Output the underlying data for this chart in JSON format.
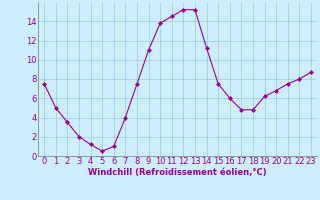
{
  "x": [
    0,
    1,
    2,
    3,
    4,
    5,
    6,
    7,
    8,
    9,
    10,
    11,
    12,
    13,
    14,
    15,
    16,
    17,
    18,
    19,
    20,
    21,
    22,
    23
  ],
  "y": [
    7.5,
    5.0,
    3.5,
    2.0,
    1.2,
    0.5,
    1.0,
    4.0,
    7.5,
    11.0,
    13.8,
    14.5,
    15.2,
    15.2,
    11.2,
    7.5,
    6.0,
    4.8,
    4.8,
    6.2,
    6.8,
    7.5,
    8.0,
    8.7
  ],
  "line_color": "#990099",
  "marker": "D",
  "marker_size": 2,
  "bg_color": "#cceeff",
  "grid_color": "#99cccc",
  "xlabel": "Windchill (Refroidissement éolien,°C)",
  "xlabel_fontsize": 6.0,
  "tick_fontsize": 6.0,
  "ylim": [
    0,
    16
  ],
  "xlim": [
    -0.5,
    23.5
  ],
  "yticks": [
    0,
    2,
    4,
    6,
    8,
    10,
    12,
    14
  ],
  "xticks": [
    0,
    1,
    2,
    3,
    4,
    5,
    6,
    7,
    8,
    9,
    10,
    11,
    12,
    13,
    14,
    15,
    16,
    17,
    18,
    19,
    20,
    21,
    22,
    23
  ]
}
